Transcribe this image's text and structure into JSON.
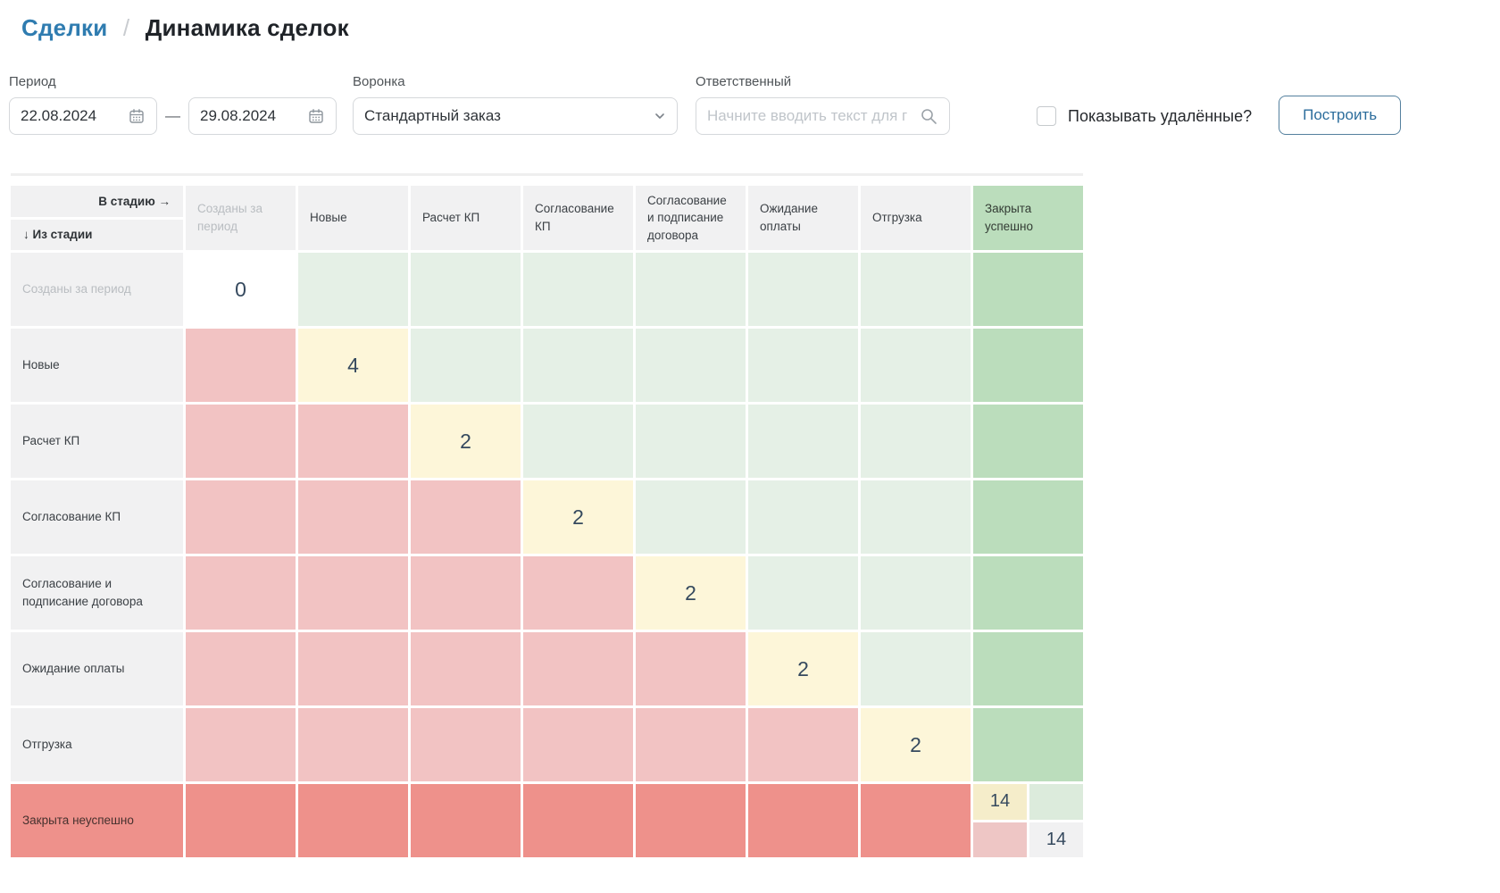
{
  "breadcrumb": {
    "parent": "Сделки",
    "separator": "/",
    "current": "Динамика сделок"
  },
  "filters": {
    "period": {
      "label": "Период",
      "date_from": "22.08.2024",
      "date_to": "29.08.2024",
      "range_dash": "—"
    },
    "funnel": {
      "label": "Воронка",
      "selected": "Стандартный заказ"
    },
    "responsible": {
      "label": "Ответственный",
      "placeholder": "Начните вводить текст для г"
    },
    "show_deleted": {
      "label": "Показывать удалённые?",
      "checked": false
    },
    "build_button_label": "Построить"
  },
  "colors": {
    "link_blue": "#2f7cb0",
    "button_border": "#54809e",
    "button_text": "#2c6d9c",
    "header_cell_bg": "#f1f1f2",
    "cell_green_light": "#e5f0e6",
    "cell_green_success": "#bbddbc",
    "cell_yellow_diagonal": "#fdf6d9",
    "cell_pink": "#f2c3c3",
    "cell_red_lost_row": "#ee918b",
    "value_text": "#35495e"
  },
  "matrix": {
    "corner": {
      "to_stage_label": "В стадию →",
      "from_stage_label": "↓ Из стадии"
    },
    "columns": [
      {
        "label": "Созданы за период",
        "muted": true
      },
      {
        "label": "Новые"
      },
      {
        "label": "Расчет КП"
      },
      {
        "label": "Согласование КП"
      },
      {
        "label": "Согласование и подписание договора"
      },
      {
        "label": "Ожидание оплаты"
      },
      {
        "label": "Отгрузка"
      },
      {
        "label": "Закрыта успешно",
        "variant": "success"
      }
    ],
    "rows": [
      {
        "label": "Созданы за период",
        "muted": true,
        "cells": [
          {
            "type": "white",
            "value": "0"
          },
          {
            "type": "green"
          },
          {
            "type": "green"
          },
          {
            "type": "green"
          },
          {
            "type": "green"
          },
          {
            "type": "green"
          },
          {
            "type": "green"
          },
          {
            "type": "success"
          }
        ]
      },
      {
        "label": "Новые",
        "cells": [
          {
            "type": "pink"
          },
          {
            "type": "yellow",
            "value": "4"
          },
          {
            "type": "green"
          },
          {
            "type": "green"
          },
          {
            "type": "green"
          },
          {
            "type": "green"
          },
          {
            "type": "green"
          },
          {
            "type": "success"
          }
        ]
      },
      {
        "label": "Расчет КП",
        "cells": [
          {
            "type": "pink"
          },
          {
            "type": "pink"
          },
          {
            "type": "yellow",
            "value": "2"
          },
          {
            "type": "green"
          },
          {
            "type": "green"
          },
          {
            "type": "green"
          },
          {
            "type": "green"
          },
          {
            "type": "success"
          }
        ]
      },
      {
        "label": "Согласование КП",
        "cells": [
          {
            "type": "pink"
          },
          {
            "type": "pink"
          },
          {
            "type": "pink"
          },
          {
            "type": "yellow",
            "value": "2"
          },
          {
            "type": "green"
          },
          {
            "type": "green"
          },
          {
            "type": "green"
          },
          {
            "type": "success"
          }
        ]
      },
      {
        "label": "Согласование и подписание договора",
        "cells": [
          {
            "type": "pink"
          },
          {
            "type": "pink"
          },
          {
            "type": "pink"
          },
          {
            "type": "pink"
          },
          {
            "type": "yellow",
            "value": "2"
          },
          {
            "type": "green"
          },
          {
            "type": "green"
          },
          {
            "type": "success"
          }
        ]
      },
      {
        "label": "Ожидание оплаты",
        "cells": [
          {
            "type": "pink"
          },
          {
            "type": "pink"
          },
          {
            "type": "pink"
          },
          {
            "type": "pink"
          },
          {
            "type": "pink"
          },
          {
            "type": "yellow",
            "value": "2"
          },
          {
            "type": "green"
          },
          {
            "type": "success"
          }
        ]
      },
      {
        "label": "Отгрузка",
        "cells": [
          {
            "type": "pink"
          },
          {
            "type": "pink"
          },
          {
            "type": "pink"
          },
          {
            "type": "pink"
          },
          {
            "type": "pink"
          },
          {
            "type": "pink"
          },
          {
            "type": "yellow",
            "value": "2"
          },
          {
            "type": "success"
          }
        ]
      },
      {
        "label": "Закрыта неуспешно",
        "variant": "fail",
        "cells": [
          {
            "type": "red"
          },
          {
            "type": "red"
          },
          {
            "type": "red"
          },
          {
            "type": "red"
          },
          {
            "type": "red"
          },
          {
            "type": "red"
          },
          {
            "type": "red"
          },
          {
            "type": "split",
            "parts": [
              {
                "type": "yellow-muted",
                "value": "14"
              },
              {
                "type": "green-muted"
              },
              {
                "type": "pink-muted"
              },
              {
                "type": "neutral",
                "value": "14"
              }
            ]
          }
        ]
      }
    ]
  }
}
